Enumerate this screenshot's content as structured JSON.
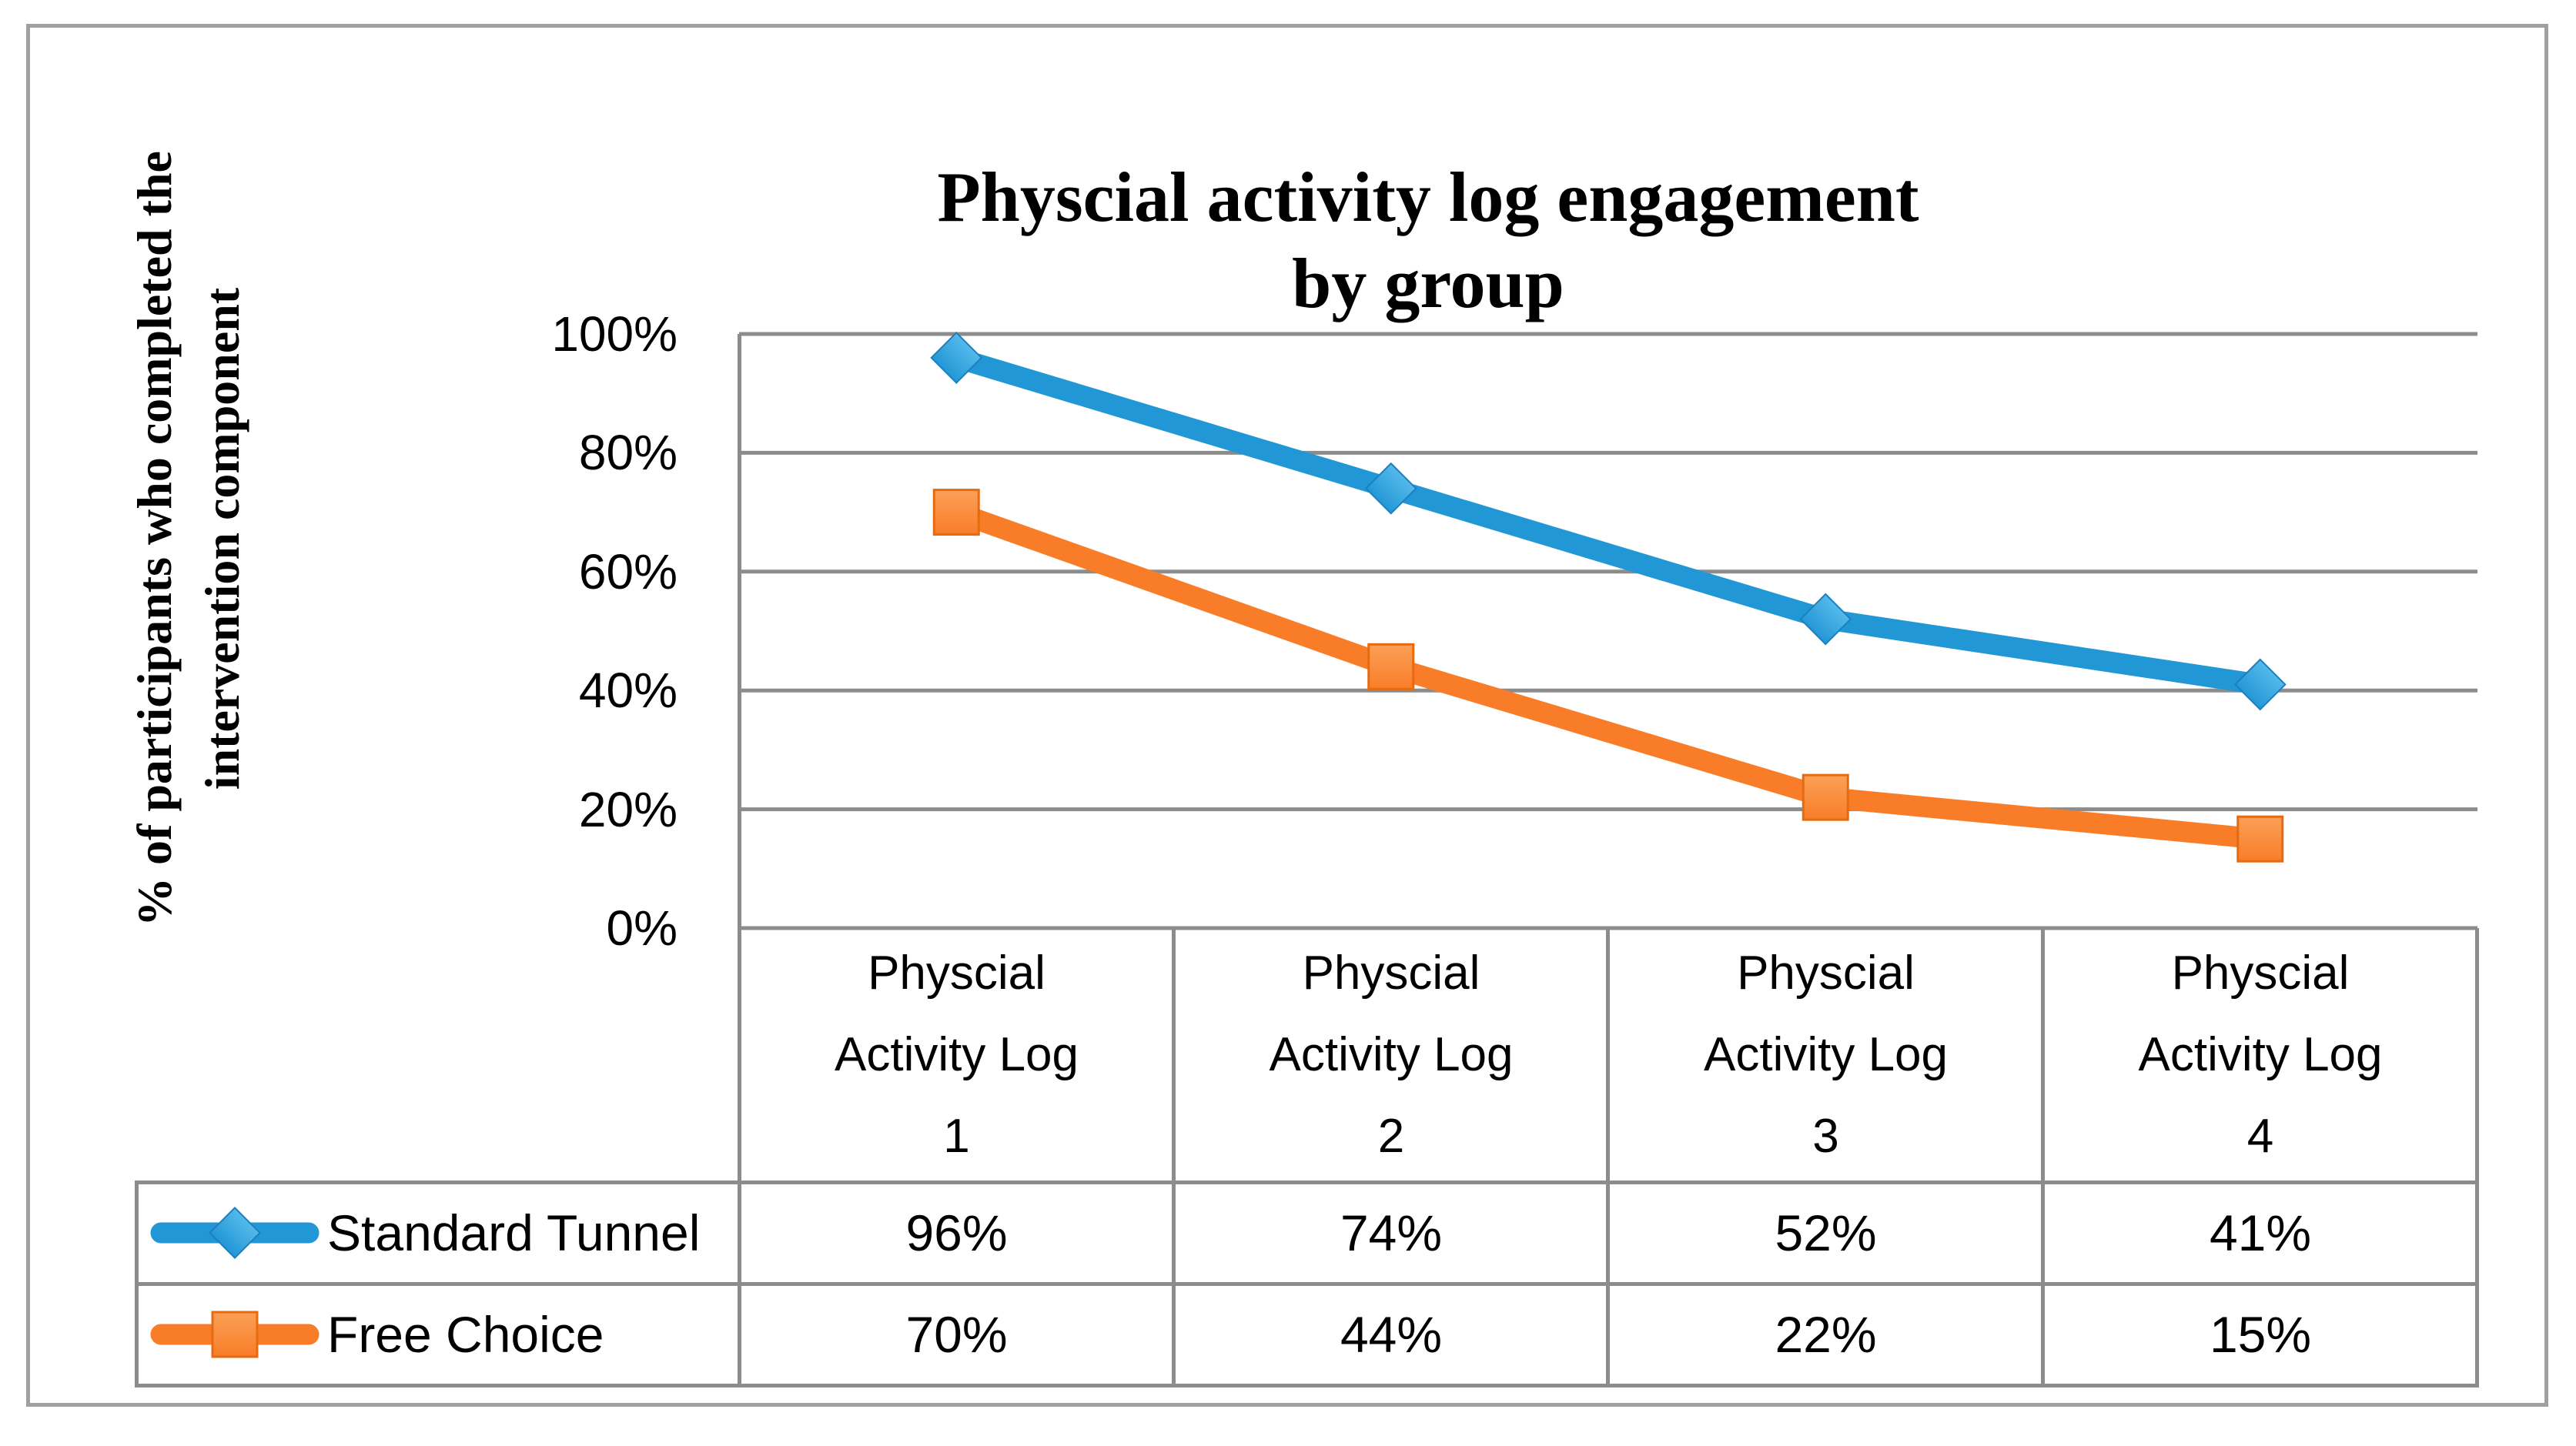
{
  "chart_data": {
    "type": "line",
    "title": "Physcial activity log engagement by group",
    "title_lines": [
      "Physcial activity log engagement",
      "by group"
    ],
    "y_axis_title": "% of participants who completed the intervention component",
    "y_axis_title_lines": [
      "% of participants who completed the",
      "intervention component"
    ],
    "categories": [
      "Physcial Activity Log 1",
      "Physcial Activity Log 2",
      "Physcial Activity Log 3",
      "Physcial Activity Log 4"
    ],
    "category_lines": [
      [
        "Physcial",
        "Activity Log",
        "1"
      ],
      [
        "Physcial",
        "Activity Log",
        "2"
      ],
      [
        "Physcial",
        "Activity Log",
        "3"
      ],
      [
        "Physcial",
        "Activity Log",
        "4"
      ]
    ],
    "y_ticks": [
      "100%",
      "80%",
      "60%",
      "40%",
      "20%",
      "0%"
    ],
    "ylim": [
      0,
      100
    ],
    "grid": true,
    "legend_position": "table-left",
    "series": [
      {
        "name": "Standard Tunnel",
        "marker": "diamond",
        "color": "#2297D6",
        "color_light": "#55B9EA",
        "color_dark": "#1D7FBF",
        "values": [
          96,
          74,
          52,
          41
        ]
      },
      {
        "name": "Free Choice",
        "marker": "square",
        "color": "#F97D28",
        "color_light": "#FBA057",
        "color_dark": "#E56A10",
        "values": [
          70,
          44,
          22,
          15
        ]
      }
    ]
  },
  "colors": {
    "gridline": "#8C8C8C",
    "table_border": "#8C8C8C",
    "figure_border": "#A0A0A0",
    "text": "#000000",
    "background": "#FFFFFF"
  }
}
